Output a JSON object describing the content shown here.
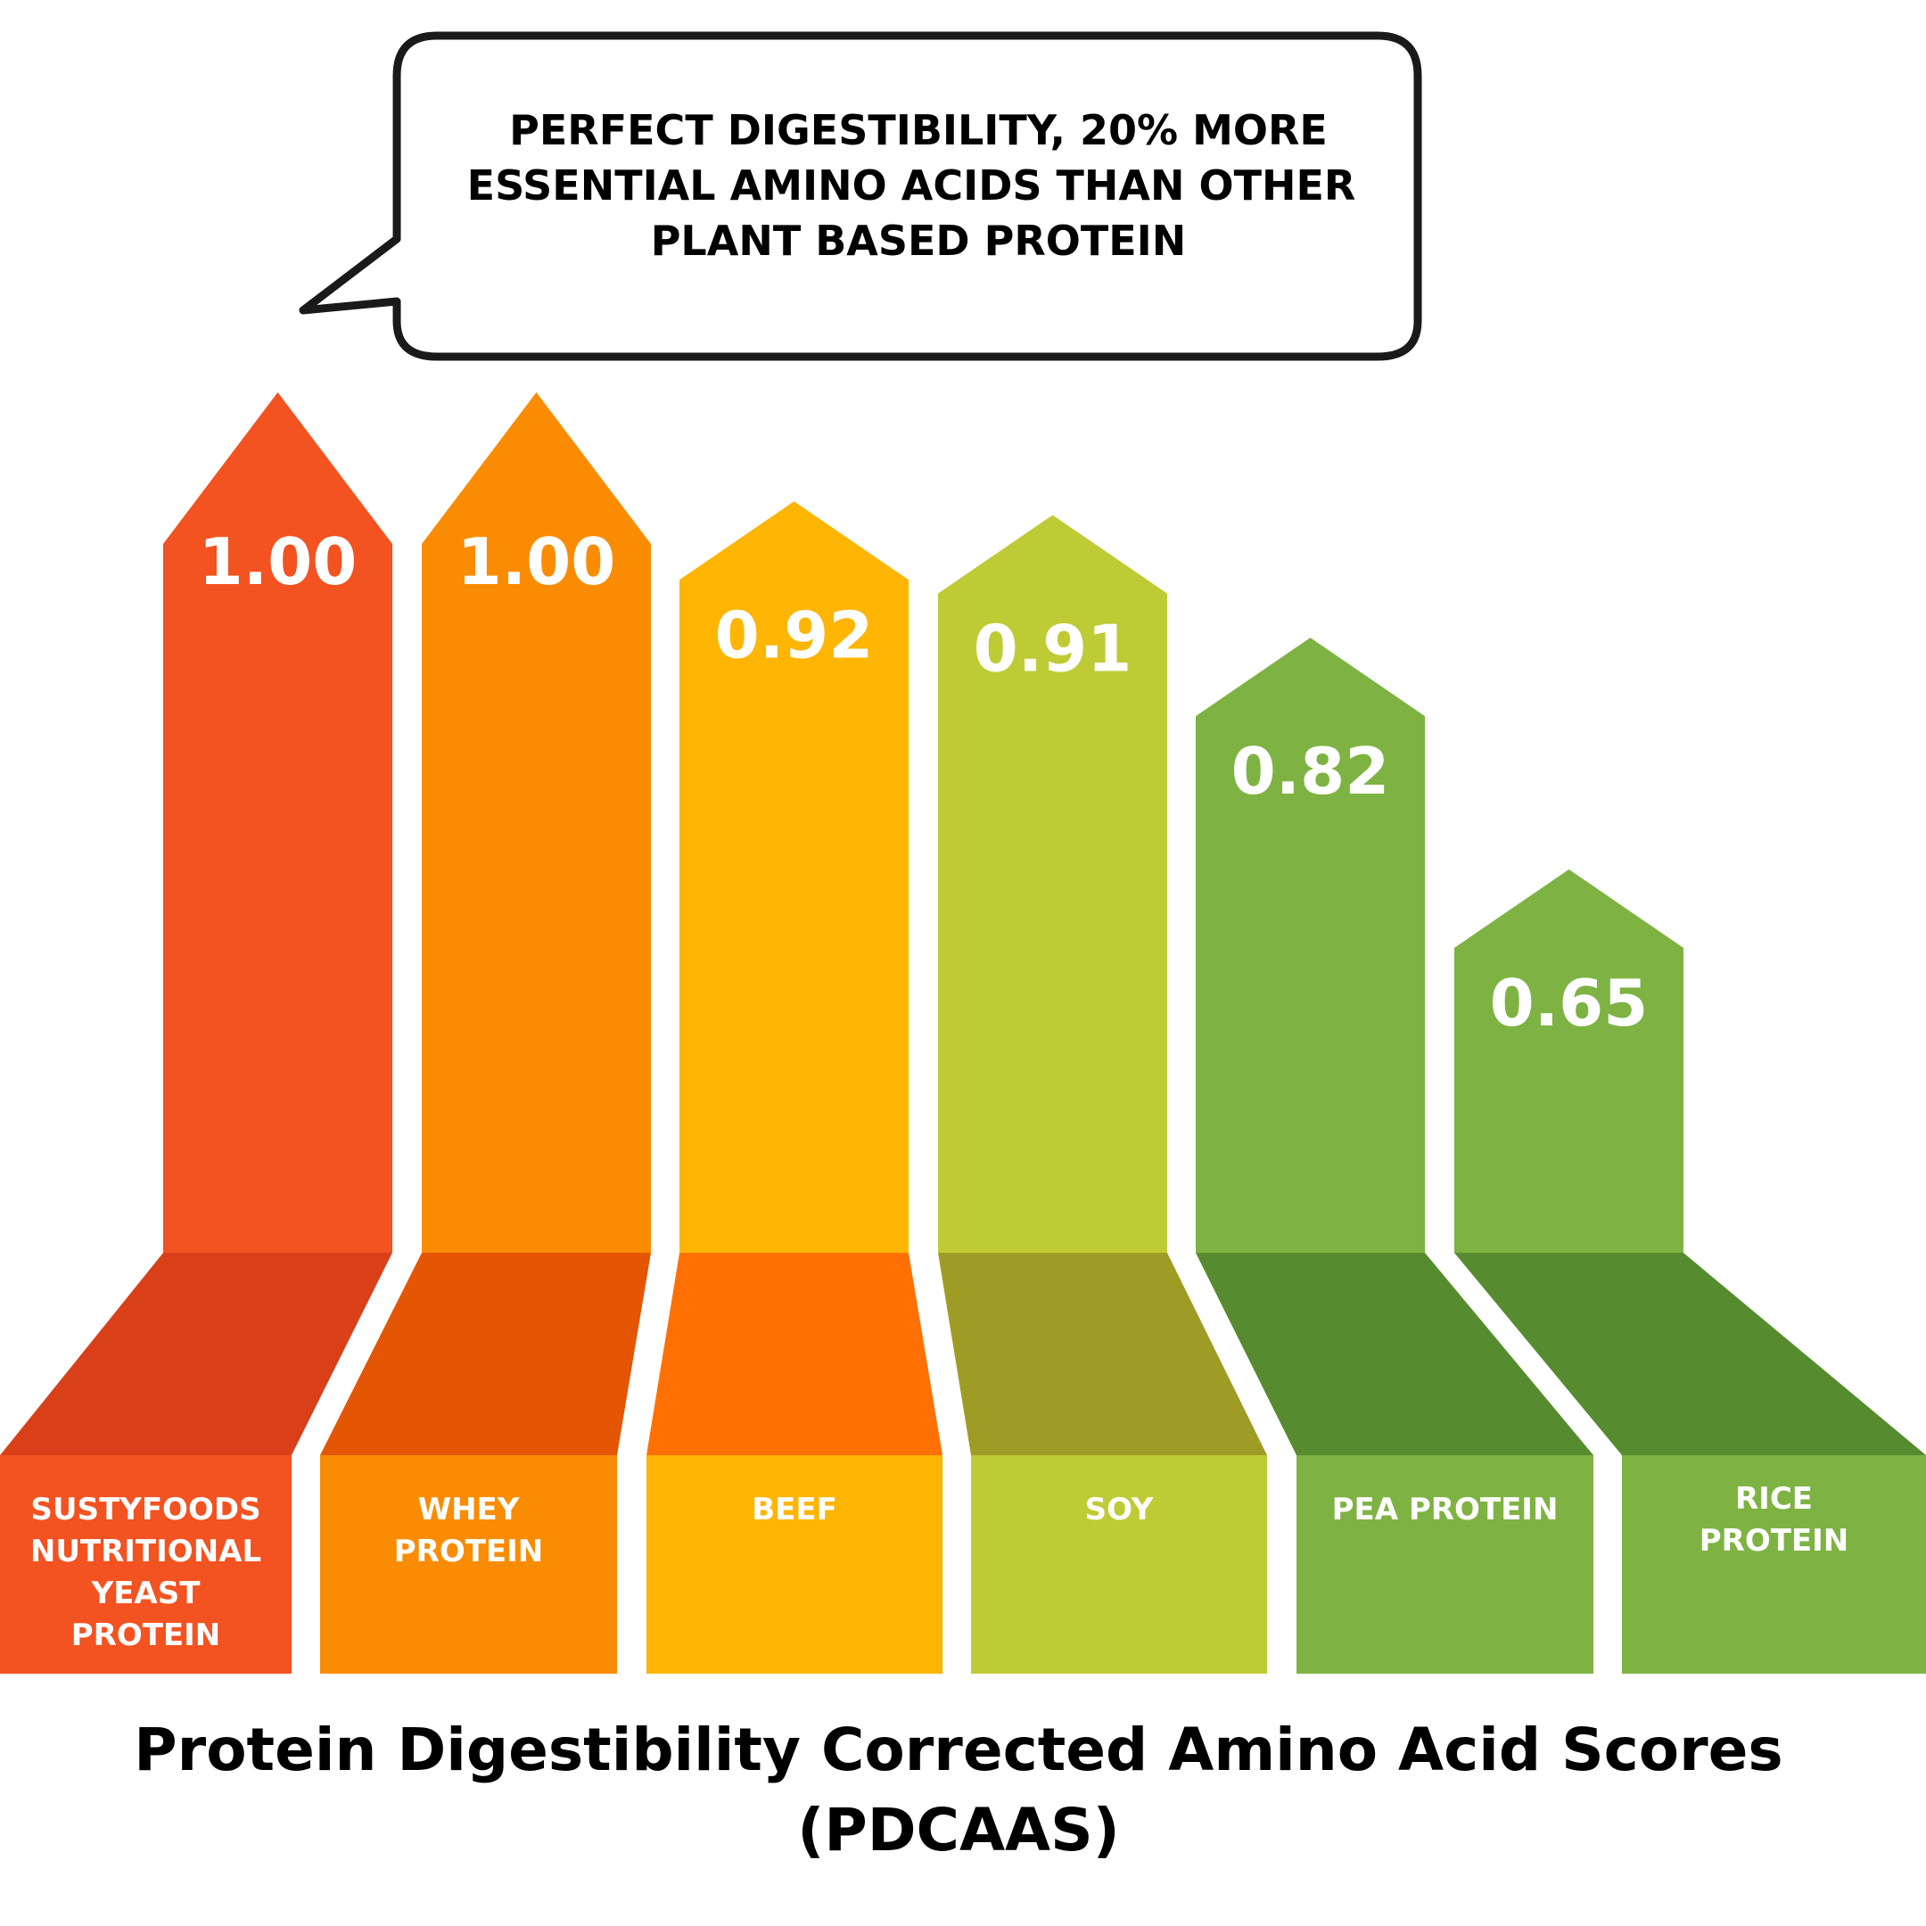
{
  "callout": {
    "lines": [
      "PERFECT DIGESTIBILITY, 20% MORE",
      "ESSENTIAL AMINO ACIDS THAN OTHER",
      "PLANT BASED PROTEIN"
    ]
  },
  "chart_data": {
    "type": "bar",
    "title_lines": [
      "Protein Digestibility Corrected Amino Acid Scores",
      "(PDCAAS)"
    ],
    "xlabel": "",
    "ylabel": "",
    "ylim": [
      0,
      1.0
    ],
    "grid": false,
    "legend": "none",
    "categories": [
      [
        "SUSTYFOODS",
        "NUTRITIONAL",
        "YEAST",
        "PROTEIN"
      ],
      [
        "WHEY",
        "PROTEIN"
      ],
      [
        "BEEF"
      ],
      [
        "SOY"
      ],
      [
        "PEA PROTEIN"
      ],
      [
        "RICE",
        "PROTEIN"
      ]
    ],
    "values": [
      1.0,
      1.0,
      0.92,
      0.91,
      0.82,
      0.65
    ],
    "value_labels": [
      "1.00",
      "1.00",
      "0.92",
      "0.91",
      "0.82",
      "0.65"
    ],
    "colors": {
      "bars": [
        "#f35221",
        "#fa8c04",
        "#feb503",
        "#bfcb35",
        "#7eb343",
        "#7eb343"
      ],
      "shadows": [
        "#d94019",
        "#e45504",
        "#fe7003",
        "#9e9c24",
        "#568b2f",
        "#568b2f"
      ]
    }
  }
}
